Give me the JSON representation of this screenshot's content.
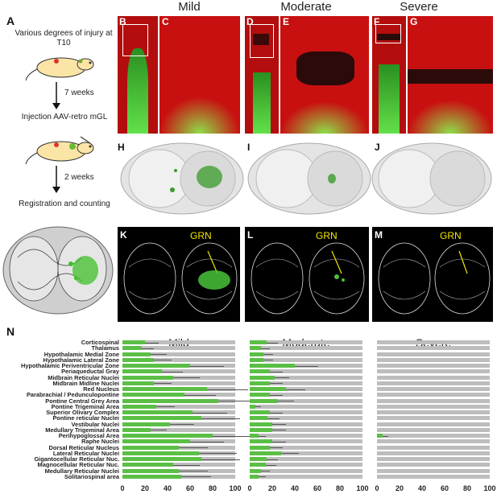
{
  "columns": [
    "Mild",
    "Moderate",
    "Severe"
  ],
  "panel_labels": {
    "A": "A",
    "B": "B",
    "C": "C",
    "D": "D",
    "E": "E",
    "F": "F",
    "G": "G",
    "H": "H",
    "I": "I",
    "J": "J",
    "K": "K",
    "L": "L",
    "M": "M",
    "N": "N"
  },
  "workflow": {
    "step1": "Various degrees of injury at T10",
    "arrow1": "7 weeks",
    "step2": "Injection AAV-retro mGL",
    "arrow2": "2 weeks",
    "step3": "Registration and counting"
  },
  "region_label": "GRN",
  "colors": {
    "red": "#c81010",
    "green": "#49c23a",
    "bar": "#5bbf46",
    "bar_bg": "#bdbdbd"
  },
  "chart_data": {
    "type": "bar",
    "orientation": "horizontal",
    "categories": [
      "Corticospinal",
      "Thalamus",
      "Hypothalamic Medial Zone",
      "Hypothalamic Lateral Zone",
      "Hypothalamic Periventricular Zone",
      "Periaqueductal Gray",
      "Midbrain Reticular Nuclei",
      "Midbrain Midline Nuclei",
      "Red Nucleus",
      "Parabrachial / Pedunculopontine",
      "Pontine Central Grey Area",
      "Pontine Trigeminal Area",
      "Superior Olivary Complex",
      "Pontine reticular Nuclei",
      "Vestibular Nuclei",
      "Medullary Trigeminal Area",
      "Perihypoglossal Area",
      "Raphe Nuclei",
      "Dorsal Reticular Nucleus",
      "Lateral Reticular Nuclei",
      "Gigantocellular Reticular Nuc.",
      "Magnocellular Reticular Nuc.",
      "Medullary Reticular Nuclei",
      "Solitariospinal area"
    ],
    "series": [
      {
        "name": "Mild",
        "values": [
          20,
          17,
          25,
          28,
          60,
          35,
          45,
          28,
          75,
          55,
          85,
          30,
          62,
          70,
          42,
          25,
          80,
          60,
          50,
          68,
          70,
          45,
          50,
          52
        ]
      },
      {
        "name": "Moderate",
        "values": [
          15,
          10,
          12,
          12,
          40,
          18,
          22,
          18,
          32,
          18,
          25,
          5,
          18,
          16,
          20,
          20,
          8,
          20,
          18,
          28,
          15,
          14,
          10,
          8
        ]
      },
      {
        "name": "Severe",
        "values": [
          0,
          0,
          0,
          0,
          0,
          0,
          0,
          0,
          0,
          0,
          0,
          0,
          0,
          0,
          0,
          0,
          5,
          0,
          0,
          0,
          0,
          0,
          0,
          0
        ]
      }
    ],
    "xlim": [
      0,
      100
    ],
    "xticks": [
      "0",
      "20",
      "40",
      "60",
      "80",
      "100"
    ],
    "grid": false,
    "error_bars": true
  }
}
